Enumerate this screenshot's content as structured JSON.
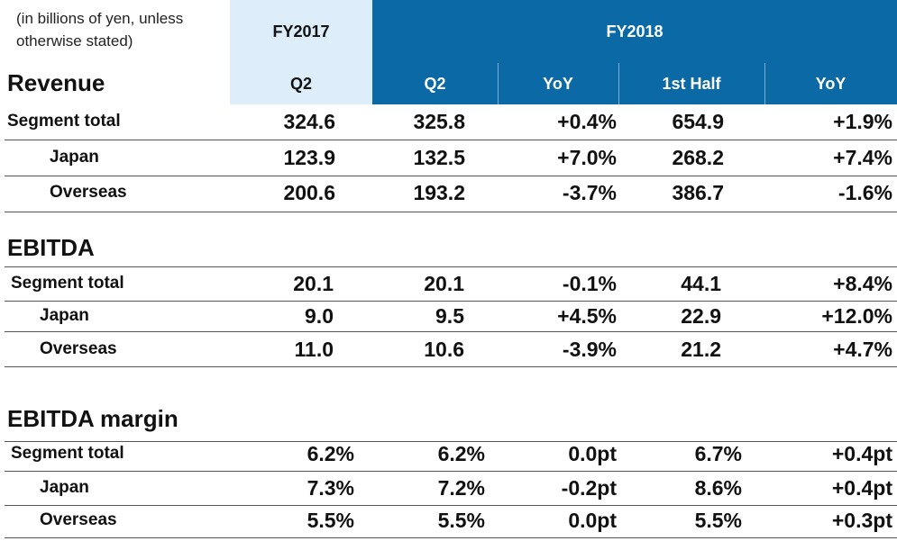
{
  "header": {
    "note": "(in billions of yen, unless otherwise stated)",
    "fy2017": "FY2017",
    "fy2018": "FY2018",
    "columns": [
      "Q2",
      "Q2",
      "YoY",
      "1st Half",
      "YoY"
    ]
  },
  "sections": [
    {
      "title": "Revenue",
      "rows": [
        {
          "label": "Segment total",
          "values": [
            "324.6",
            "325.8",
            "+0.4%",
            "654.9",
            "+1.9%"
          ]
        },
        {
          "label": "Japan",
          "values": [
            "123.9",
            "132.5",
            "+7.0%",
            "268.2",
            "+7.4%"
          ]
        },
        {
          "label": "Overseas",
          "values": [
            "200.6",
            "193.2",
            "-3.7%",
            "386.7",
            "-1.6%"
          ]
        }
      ]
    },
    {
      "title": "EBITDA",
      "rows": [
        {
          "label": "Segment total",
          "values": [
            "20.1",
            "20.1",
            "-0.1%",
            "44.1",
            "+8.4%"
          ]
        },
        {
          "label": "Japan",
          "values": [
            "9.0",
            "9.5",
            "+4.5%",
            "22.9",
            "+12.0%"
          ]
        },
        {
          "label": "Overseas",
          "values": [
            "11.0",
            "10.6",
            "-3.9%",
            "21.2",
            "+4.7%"
          ]
        }
      ]
    },
    {
      "title": "EBITDA margin",
      "rows": [
        {
          "label": "Segment total",
          "values": [
            "6.2%",
            "6.2%",
            "0.0pt",
            "6.7%",
            "+0.4pt"
          ]
        },
        {
          "label": "Japan",
          "values": [
            "7.3%",
            "7.2%",
            "-0.2pt",
            "8.6%",
            "+0.4pt"
          ]
        },
        {
          "label": "Overseas",
          "values": [
            "5.5%",
            "5.5%",
            "0.0pt",
            "5.5%",
            "+0.3pt"
          ]
        }
      ]
    }
  ]
}
